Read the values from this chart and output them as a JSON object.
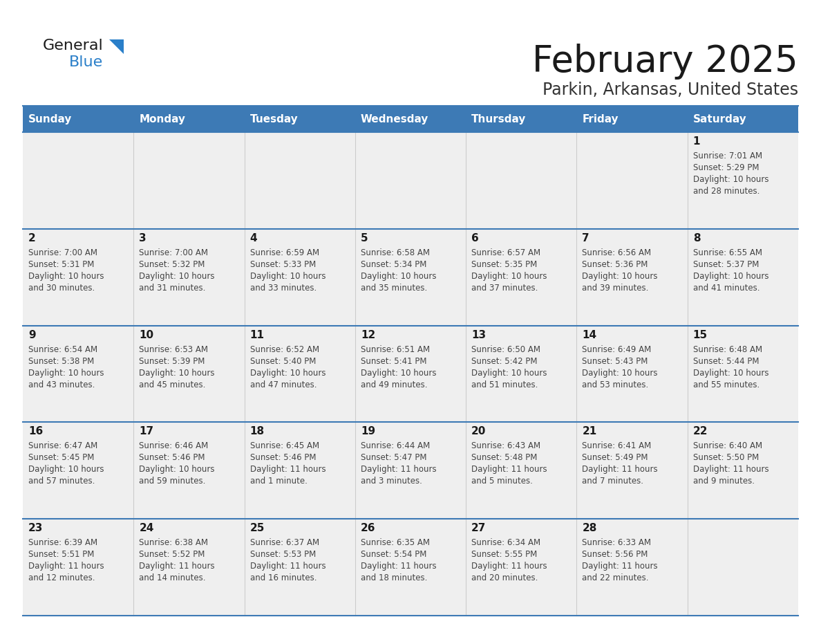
{
  "title": "February 2025",
  "subtitle": "Parkin, Arkansas, United States",
  "header_bg_color": "#3d7ab5",
  "header_text_color": "#ffffff",
  "row_bg_color": "#efefef",
  "row_bg_white": "#ffffff",
  "day_num_strip_color": "#efefef",
  "title_color": "#1a1a1a",
  "subtitle_color": "#333333",
  "day_num_color": "#1a1a1a",
  "info_color": "#444444",
  "line_color": "#3d7ab5",
  "grid_line_color": "#cccccc",
  "logo_general_color": "#1a1a1a",
  "logo_blue_color": "#2a7fc9",
  "day_headers": [
    "Sunday",
    "Monday",
    "Tuesday",
    "Wednesday",
    "Thursday",
    "Friday",
    "Saturday"
  ],
  "calendar_data": [
    [
      null,
      null,
      null,
      null,
      null,
      null,
      {
        "day": "1",
        "sunrise": "7:01 AM",
        "sunset": "5:29 PM",
        "daylight_line1": "Daylight: 10 hours",
        "daylight_line2": "and 28 minutes."
      }
    ],
    [
      {
        "day": "2",
        "sunrise": "7:00 AM",
        "sunset": "5:31 PM",
        "daylight_line1": "Daylight: 10 hours",
        "daylight_line2": "and 30 minutes."
      },
      {
        "day": "3",
        "sunrise": "7:00 AM",
        "sunset": "5:32 PM",
        "daylight_line1": "Daylight: 10 hours",
        "daylight_line2": "and 31 minutes."
      },
      {
        "day": "4",
        "sunrise": "6:59 AM",
        "sunset": "5:33 PM",
        "daylight_line1": "Daylight: 10 hours",
        "daylight_line2": "and 33 minutes."
      },
      {
        "day": "5",
        "sunrise": "6:58 AM",
        "sunset": "5:34 PM",
        "daylight_line1": "Daylight: 10 hours",
        "daylight_line2": "and 35 minutes."
      },
      {
        "day": "6",
        "sunrise": "6:57 AM",
        "sunset": "5:35 PM",
        "daylight_line1": "Daylight: 10 hours",
        "daylight_line2": "and 37 minutes."
      },
      {
        "day": "7",
        "sunrise": "6:56 AM",
        "sunset": "5:36 PM",
        "daylight_line1": "Daylight: 10 hours",
        "daylight_line2": "and 39 minutes."
      },
      {
        "day": "8",
        "sunrise": "6:55 AM",
        "sunset": "5:37 PM",
        "daylight_line1": "Daylight: 10 hours",
        "daylight_line2": "and 41 minutes."
      }
    ],
    [
      {
        "day": "9",
        "sunrise": "6:54 AM",
        "sunset": "5:38 PM",
        "daylight_line1": "Daylight: 10 hours",
        "daylight_line2": "and 43 minutes."
      },
      {
        "day": "10",
        "sunrise": "6:53 AM",
        "sunset": "5:39 PM",
        "daylight_line1": "Daylight: 10 hours",
        "daylight_line2": "and 45 minutes."
      },
      {
        "day": "11",
        "sunrise": "6:52 AM",
        "sunset": "5:40 PM",
        "daylight_line1": "Daylight: 10 hours",
        "daylight_line2": "and 47 minutes."
      },
      {
        "day": "12",
        "sunrise": "6:51 AM",
        "sunset": "5:41 PM",
        "daylight_line1": "Daylight: 10 hours",
        "daylight_line2": "and 49 minutes."
      },
      {
        "day": "13",
        "sunrise": "6:50 AM",
        "sunset": "5:42 PM",
        "daylight_line1": "Daylight: 10 hours",
        "daylight_line2": "and 51 minutes."
      },
      {
        "day": "14",
        "sunrise": "6:49 AM",
        "sunset": "5:43 PM",
        "daylight_line1": "Daylight: 10 hours",
        "daylight_line2": "and 53 minutes."
      },
      {
        "day": "15",
        "sunrise": "6:48 AM",
        "sunset": "5:44 PM",
        "daylight_line1": "Daylight: 10 hours",
        "daylight_line2": "and 55 minutes."
      }
    ],
    [
      {
        "day": "16",
        "sunrise": "6:47 AM",
        "sunset": "5:45 PM",
        "daylight_line1": "Daylight: 10 hours",
        "daylight_line2": "and 57 minutes."
      },
      {
        "day": "17",
        "sunrise": "6:46 AM",
        "sunset": "5:46 PM",
        "daylight_line1": "Daylight: 10 hours",
        "daylight_line2": "and 59 minutes."
      },
      {
        "day": "18",
        "sunrise": "6:45 AM",
        "sunset": "5:46 PM",
        "daylight_line1": "Daylight: 11 hours",
        "daylight_line2": "and 1 minute."
      },
      {
        "day": "19",
        "sunrise": "6:44 AM",
        "sunset": "5:47 PM",
        "daylight_line1": "Daylight: 11 hours",
        "daylight_line2": "and 3 minutes."
      },
      {
        "day": "20",
        "sunrise": "6:43 AM",
        "sunset": "5:48 PM",
        "daylight_line1": "Daylight: 11 hours",
        "daylight_line2": "and 5 minutes."
      },
      {
        "day": "21",
        "sunrise": "6:41 AM",
        "sunset": "5:49 PM",
        "daylight_line1": "Daylight: 11 hours",
        "daylight_line2": "and 7 minutes."
      },
      {
        "day": "22",
        "sunrise": "6:40 AM",
        "sunset": "5:50 PM",
        "daylight_line1": "Daylight: 11 hours",
        "daylight_line2": "and 9 minutes."
      }
    ],
    [
      {
        "day": "23",
        "sunrise": "6:39 AM",
        "sunset": "5:51 PM",
        "daylight_line1": "Daylight: 11 hours",
        "daylight_line2": "and 12 minutes."
      },
      {
        "day": "24",
        "sunrise": "6:38 AM",
        "sunset": "5:52 PM",
        "daylight_line1": "Daylight: 11 hours",
        "daylight_line2": "and 14 minutes."
      },
      {
        "day": "25",
        "sunrise": "6:37 AM",
        "sunset": "5:53 PM",
        "daylight_line1": "Daylight: 11 hours",
        "daylight_line2": "and 16 minutes."
      },
      {
        "day": "26",
        "sunrise": "6:35 AM",
        "sunset": "5:54 PM",
        "daylight_line1": "Daylight: 11 hours",
        "daylight_line2": "and 18 minutes."
      },
      {
        "day": "27",
        "sunrise": "6:34 AM",
        "sunset": "5:55 PM",
        "daylight_line1": "Daylight: 11 hours",
        "daylight_line2": "and 20 minutes."
      },
      {
        "day": "28",
        "sunrise": "6:33 AM",
        "sunset": "5:56 PM",
        "daylight_line1": "Daylight: 11 hours",
        "daylight_line2": "and 22 minutes."
      },
      null
    ]
  ]
}
